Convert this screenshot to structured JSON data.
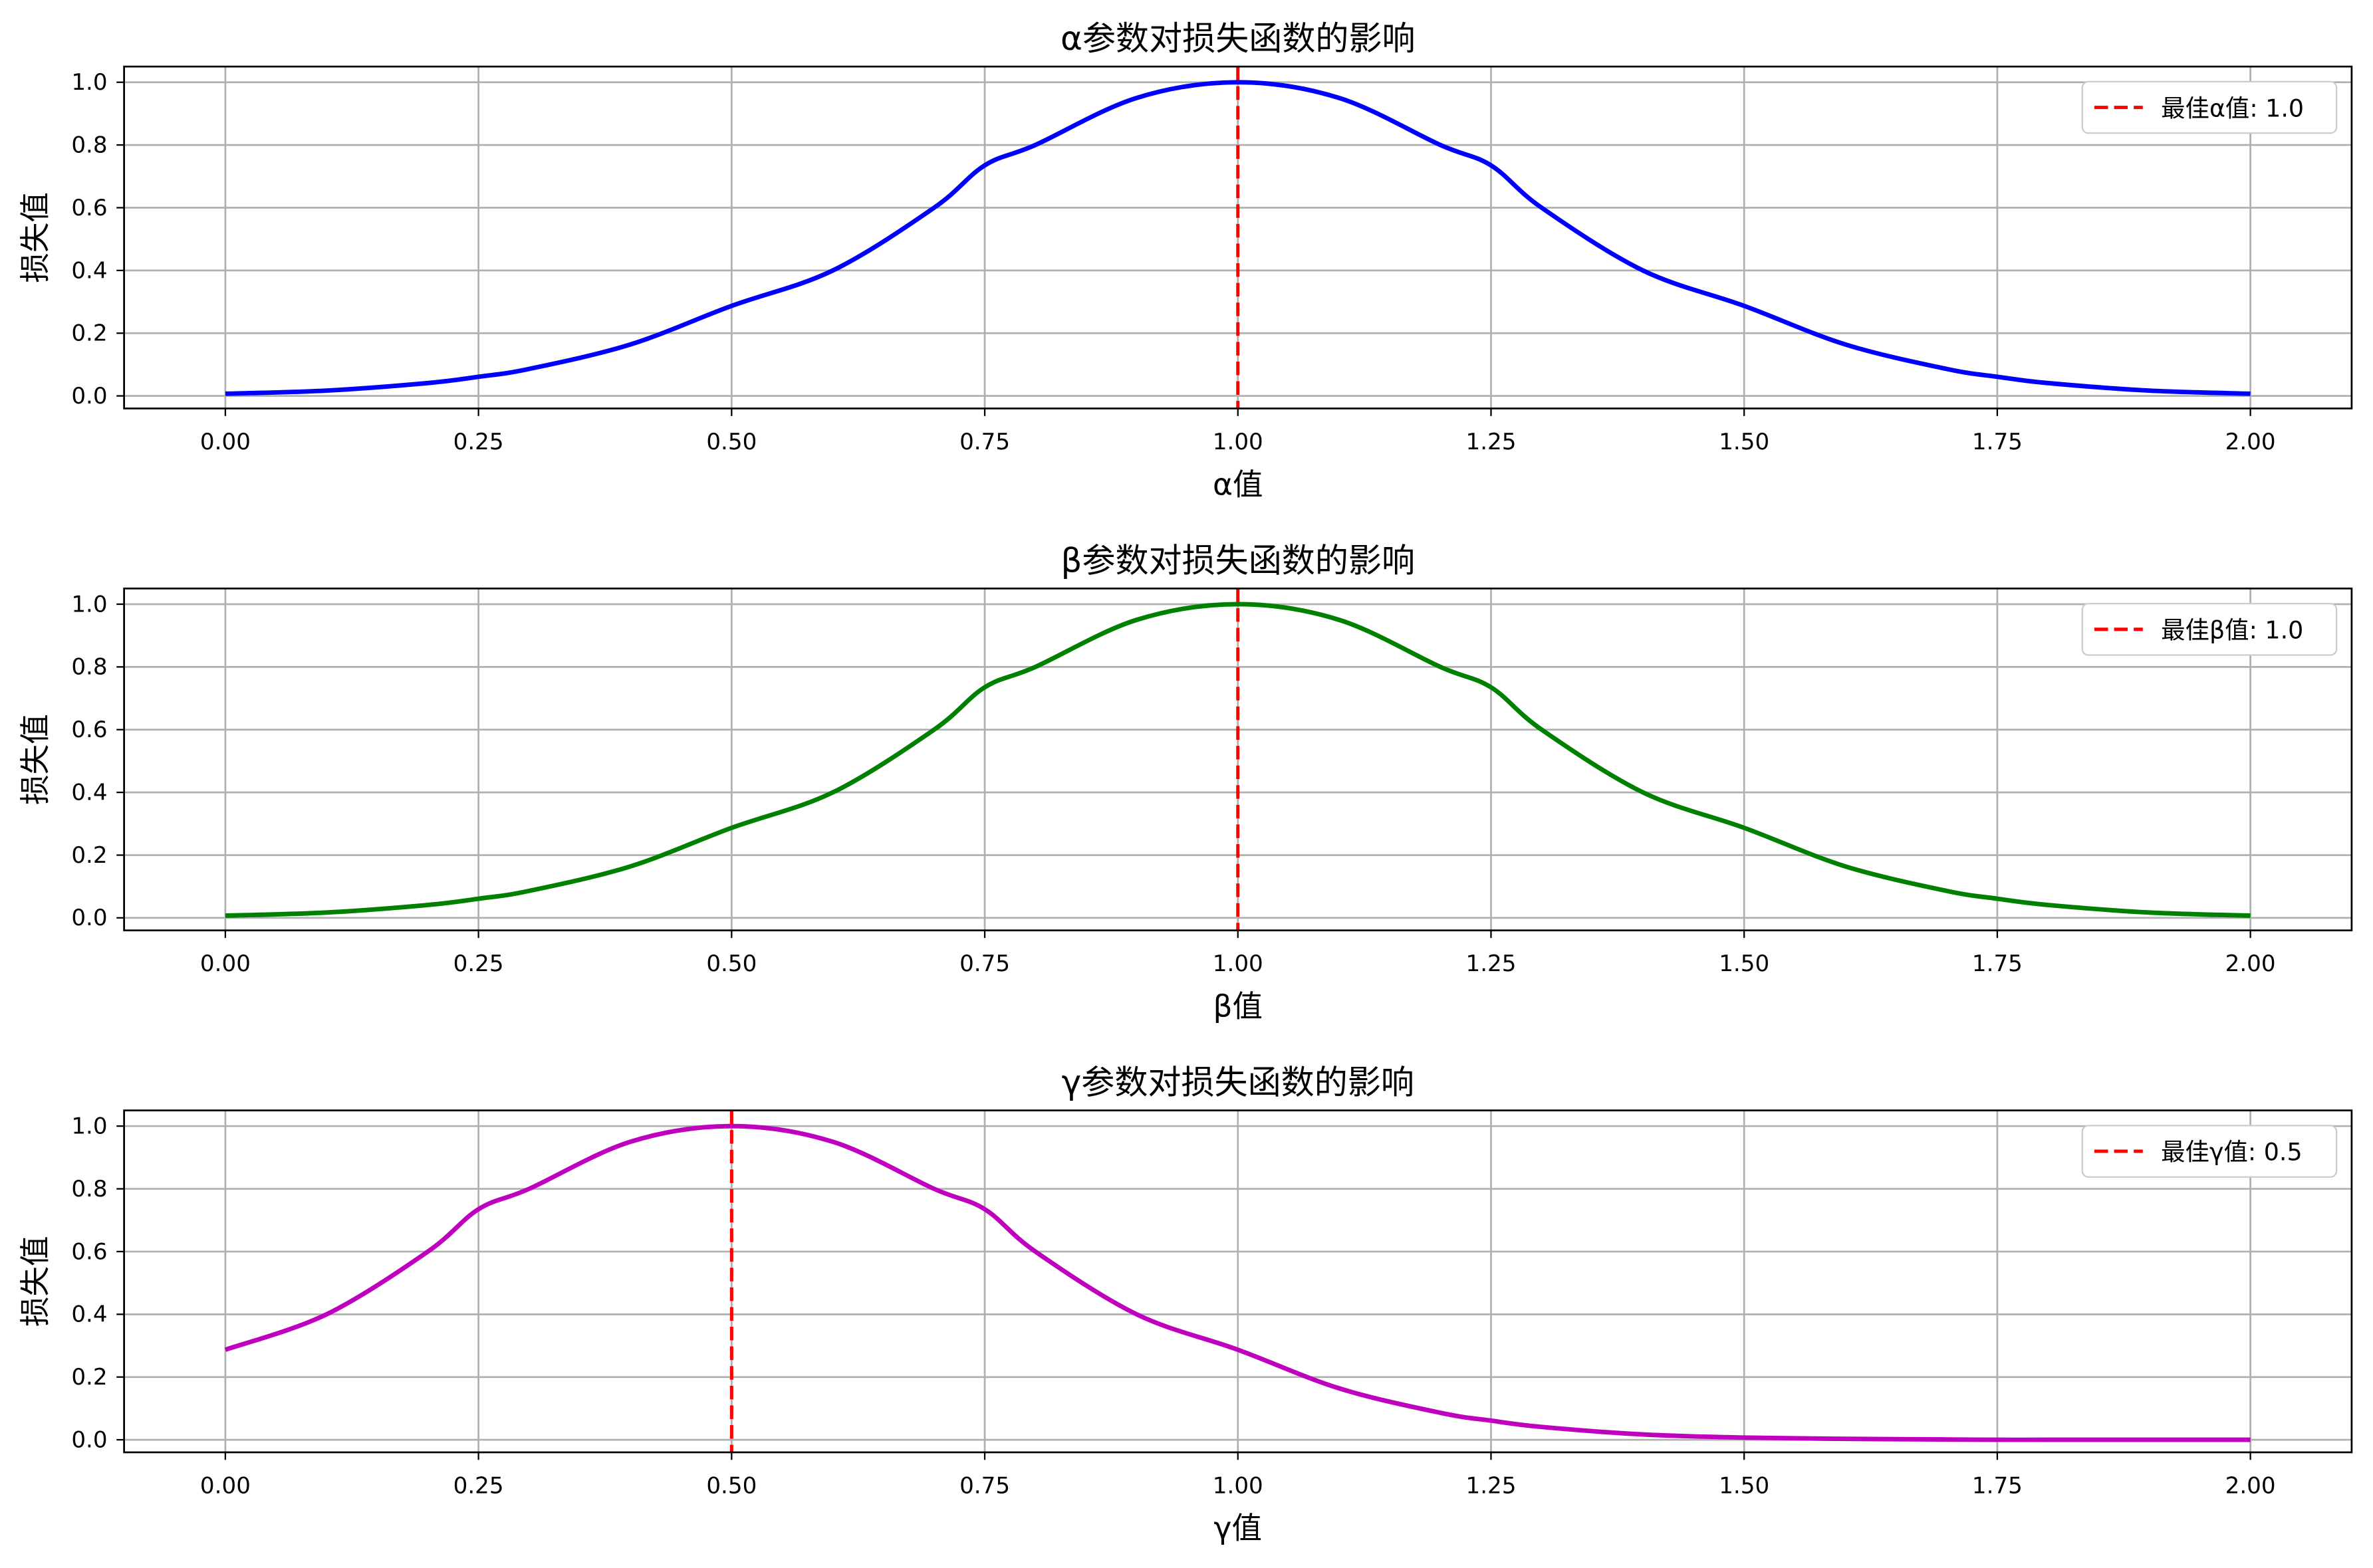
{
  "chart_data": [
    {
      "type": "line",
      "title": "α参数对损失函数的影响",
      "xlabel": "α值",
      "ylabel": "损失值",
      "xlim": [
        -0.1,
        2.1
      ],
      "ylim": [
        -0.04,
        1.05
      ],
      "xticks": [
        "0.00",
        "0.25",
        "0.50",
        "0.75",
        "1.00",
        "1.25",
        "1.50",
        "1.75",
        "2.00"
      ],
      "yticks": [
        "0.0",
        "0.2",
        "0.4",
        "0.6",
        "0.8",
        "1.0"
      ],
      "grid": true,
      "legend_position": "top-right",
      "series": [
        {
          "color": "#0000ff",
          "x": [
            0.0,
            0.1,
            0.2,
            0.25,
            0.3,
            0.4,
            0.5,
            0.6,
            0.7,
            0.75,
            0.8,
            0.9,
            1.0,
            1.1,
            1.2,
            1.25,
            1.3,
            1.4,
            1.5,
            1.6,
            1.7,
            1.75,
            1.8,
            1.9,
            2.0
          ],
          "y": [
            0.007,
            0.017,
            0.041,
            0.061,
            0.086,
            0.164,
            0.287,
            0.4,
            0.6,
            0.735,
            0.8,
            0.95,
            1.0,
            0.95,
            0.8,
            0.735,
            0.6,
            0.4,
            0.287,
            0.164,
            0.086,
            0.061,
            0.041,
            0.017,
            0.007
          ]
        }
      ],
      "vline": {
        "x": 1.0,
        "color": "#ff0000",
        "label": "最佳α值: 1.0"
      }
    },
    {
      "type": "line",
      "title": "β参数对损失函数的影响",
      "xlabel": "β值",
      "ylabel": "损失值",
      "xlim": [
        -0.1,
        2.1
      ],
      "ylim": [
        -0.04,
        1.05
      ],
      "xticks": [
        "0.00",
        "0.25",
        "0.50",
        "0.75",
        "1.00",
        "1.25",
        "1.50",
        "1.75",
        "2.00"
      ],
      "yticks": [
        "0.0",
        "0.2",
        "0.4",
        "0.6",
        "0.8",
        "1.0"
      ],
      "grid": true,
      "legend_position": "top-right",
      "series": [
        {
          "color": "#008000",
          "x": [
            0.0,
            0.1,
            0.2,
            0.25,
            0.3,
            0.4,
            0.5,
            0.6,
            0.7,
            0.75,
            0.8,
            0.9,
            1.0,
            1.1,
            1.2,
            1.25,
            1.3,
            1.4,
            1.5,
            1.6,
            1.7,
            1.75,
            1.8,
            1.9,
            2.0
          ],
          "y": [
            0.007,
            0.017,
            0.041,
            0.061,
            0.086,
            0.164,
            0.287,
            0.4,
            0.6,
            0.735,
            0.8,
            0.95,
            1.0,
            0.95,
            0.8,
            0.735,
            0.6,
            0.4,
            0.287,
            0.164,
            0.086,
            0.061,
            0.041,
            0.017,
            0.007
          ]
        }
      ],
      "vline": {
        "x": 1.0,
        "color": "#ff0000",
        "label": "最佳β值: 1.0"
      }
    },
    {
      "type": "line",
      "title": "γ参数对损失函数的影响",
      "xlabel": "γ值",
      "ylabel": "损失值",
      "xlim": [
        -0.1,
        2.1
      ],
      "ylim": [
        -0.04,
        1.05
      ],
      "xticks": [
        "0.00",
        "0.25",
        "0.50",
        "0.75",
        "1.00",
        "1.25",
        "1.50",
        "1.75",
        "2.00"
      ],
      "yticks": [
        "0.0",
        "0.2",
        "0.4",
        "0.6",
        "0.8",
        "1.0"
      ],
      "grid": true,
      "legend_position": "top-right",
      "series": [
        {
          "color": "#bf00bf",
          "x": [
            0.0,
            0.1,
            0.2,
            0.25,
            0.3,
            0.4,
            0.5,
            0.6,
            0.7,
            0.75,
            0.8,
            0.9,
            1.0,
            1.1,
            1.2,
            1.25,
            1.3,
            1.4,
            1.5,
            1.6,
            1.7,
            1.75,
            1.8,
            1.9,
            2.0
          ],
          "y": [
            0.287,
            0.4,
            0.6,
            0.735,
            0.8,
            0.95,
            1.0,
            0.95,
            0.8,
            0.735,
            0.6,
            0.4,
            0.287,
            0.164,
            0.086,
            0.061,
            0.041,
            0.017,
            0.007,
            0.003,
            0.001,
            0.0,
            0.0,
            0.0,
            0.0
          ]
        }
      ],
      "vline": {
        "x": 0.5,
        "color": "#ff0000",
        "label": "最佳γ值: 0.5"
      }
    }
  ]
}
